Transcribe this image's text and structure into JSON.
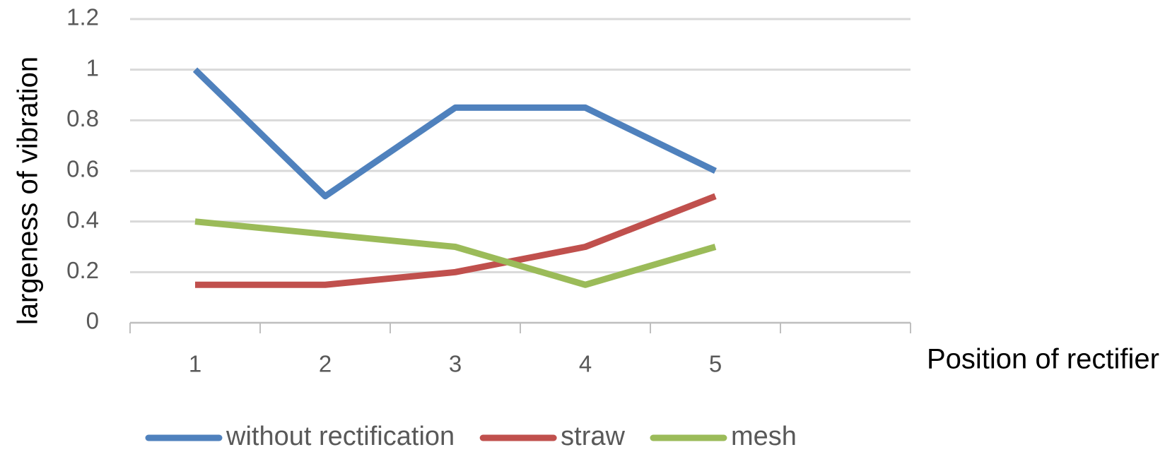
{
  "chart_data": {
    "type": "line",
    "y_label": "largeness  of vibration",
    "x_label": "Position of rectifier",
    "categories": [
      "1",
      "2",
      "3",
      "4",
      "5",
      null
    ],
    "series": [
      {
        "name": "without rectification",
        "color": "#4f81bd",
        "values": [
          1,
          0.5,
          0.85,
          0.85,
          0.6,
          null
        ]
      },
      {
        "name": "straw",
        "color": "#c0504d",
        "values": [
          0.15,
          0.15,
          0.2,
          0.3,
          0.5,
          null
        ]
      },
      {
        "name": "mesh",
        "color": "#9bbb59",
        "values": [
          0.4,
          0.35,
          0.3,
          0.15,
          0.3,
          null
        ]
      }
    ],
    "ylim": [
      0,
      1.2
    ],
    "yticks": [
      0,
      0.2,
      0.4,
      0.6,
      0.8,
      1,
      1.2
    ],
    "grid": true,
    "legend": "bottom"
  }
}
